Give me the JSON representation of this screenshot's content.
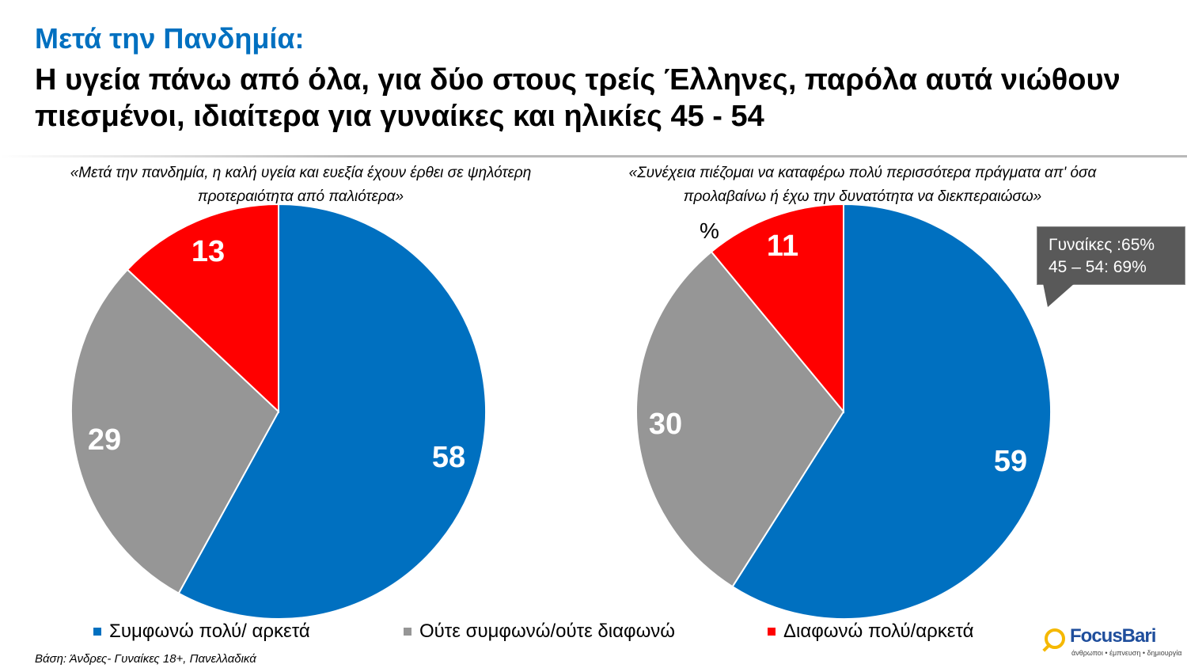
{
  "title": {
    "line1": "Μετά την Πανδημία:",
    "line2": "Η υγεία πάνω από όλα, για δύο στους τρείς Έλληνες, παρόλα αυτά νιώθουν πιεσμένοι, ιδιαίτερα για γυναίκες και ηλικίες 45 - 54"
  },
  "chart_data": [
    {
      "type": "pie",
      "title": "«Μετά την πανδημία, η καλή υγεία και ευεξία έχουν έρθει σε ψηλότερη προτεραιότητα από παλιότερα»",
      "categories": [
        "Συμφωνώ πολύ/ αρκετά",
        "Ούτε συμφωνώ/ούτε διαφωνώ",
        "Διαφωνώ πολύ/αρκετά"
      ],
      "values": [
        58,
        29,
        13
      ],
      "labels": [
        "58",
        "29",
        "13"
      ],
      "colors": [
        "#0070c0",
        "#969696",
        "#ff0000"
      ]
    },
    {
      "type": "pie",
      "title": "«Συνέχεια πιέζομαι να καταφέρω πολύ περισσότερα πράγματα απ' όσα προλαβαίνω ή έχω την δυνατότητα να διεκπεραιώσω»",
      "categories": [
        "Συμφωνώ πολύ/ αρκετά",
        "Ούτε συμφωνώ/ούτε διαφωνώ",
        "Διαφωνώ πολύ/αρκετά"
      ],
      "values": [
        59,
        30,
        11
      ],
      "labels": [
        "59",
        "30",
        "11"
      ],
      "colors": [
        "#0070c0",
        "#969696",
        "#ff0000"
      ]
    }
  ],
  "unit_label": "%",
  "callout": {
    "line1": "Γυναίκες :65%",
    "line2": "45 – 54:  69%"
  },
  "legend": [
    {
      "label": "Συμφωνώ πολύ/ αρκετά",
      "color": "#0070c0"
    },
    {
      "label": "Ούτε συμφωνώ/ούτε διαφωνώ",
      "color": "#969696"
    },
    {
      "label": "Διαφωνώ πολύ/αρκετά",
      "color": "#ff0000"
    }
  ],
  "base_note": "Βάση: Άνδρες- Γυναίκες 18+, Πανελλαδικά",
  "logo": {
    "name": "FocusBari",
    "tagline": "άνθρωποι • έμπνευση • δημιουργία"
  }
}
